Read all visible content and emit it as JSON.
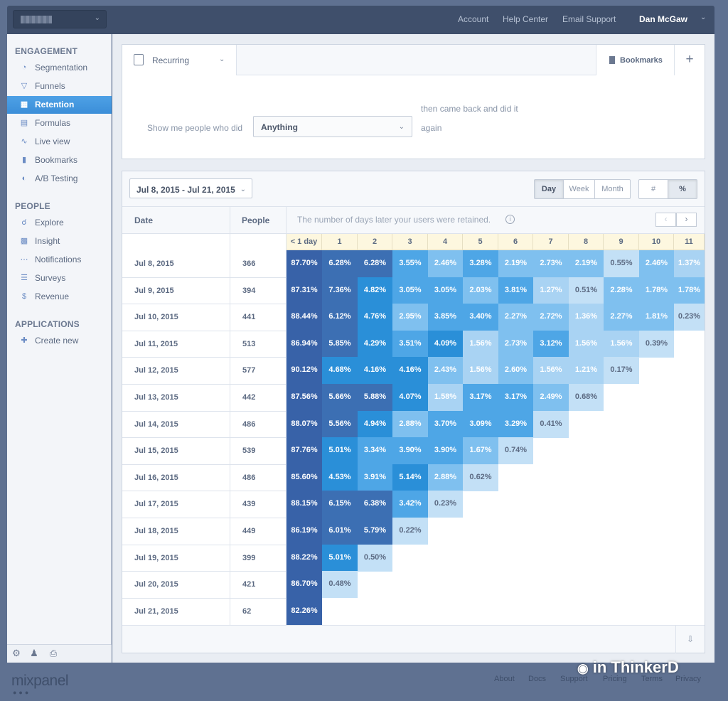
{
  "topbar": {
    "nav": [
      "Account",
      "Help Center",
      "Email Support"
    ],
    "user": "Dan McGaw"
  },
  "sidebar": {
    "sections": [
      {
        "heading": "ENGAGEMENT",
        "items": [
          {
            "label": "Segmentation",
            "icon": "pie-chart-icon"
          },
          {
            "label": "Funnels",
            "icon": "funnel-icon"
          },
          {
            "label": "Retention",
            "icon": "retention-grid-icon",
            "active": true
          },
          {
            "label": "Formulas",
            "icon": "calculator-icon"
          },
          {
            "label": "Live view",
            "icon": "live-view-icon"
          },
          {
            "label": "Bookmarks",
            "icon": "bookmark-icon"
          },
          {
            "label": "A/B Testing",
            "icon": "ab-testing-icon"
          }
        ]
      },
      {
        "heading": "PEOPLE",
        "items": [
          {
            "label": "Explore",
            "icon": "explore-icon"
          },
          {
            "label": "Insight",
            "icon": "insight-icon"
          },
          {
            "label": "Notifications",
            "icon": "notifications-icon"
          },
          {
            "label": "Surveys",
            "icon": "survey-icon"
          },
          {
            "label": "Revenue",
            "icon": "revenue-icon"
          }
        ]
      },
      {
        "heading": "APPLICATIONS",
        "items": [
          {
            "label": "Create new",
            "icon": "plus-icon"
          }
        ]
      }
    ]
  },
  "query": {
    "type_label": "Recurring",
    "bookmarks_label": "Bookmarks",
    "show_label": "Show me people who did",
    "event_value": "Anything",
    "then_label": "then came back and did it",
    "again_label": "again"
  },
  "report": {
    "date_range": "Jul 8, 2015 - Jul 21, 2015",
    "interval_options": [
      "Day",
      "Week",
      "Month"
    ],
    "interval_selected": "Day",
    "mode_options": [
      "#",
      "%"
    ],
    "mode_selected": "%",
    "col_date": "Date",
    "col_people": "People",
    "retained_note": "The number of days later your users were retained.",
    "day_headers": [
      "< 1 day",
      "1",
      "2",
      "3",
      "4",
      "5",
      "6",
      "7",
      "8",
      "9",
      "10",
      "11"
    ],
    "rows": [
      {
        "date": "Jul 8, 2015",
        "people": "366",
        "values": [
          "87.70%",
          "6.28%",
          "6.28%",
          "3.55%",
          "2.46%",
          "3.28%",
          "2.19%",
          "2.73%",
          "2.19%",
          "0.55%",
          "2.46%",
          "1.37%"
        ]
      },
      {
        "date": "Jul 9, 2015",
        "people": "394",
        "values": [
          "87.31%",
          "7.36%",
          "4.82%",
          "3.05%",
          "3.05%",
          "2.03%",
          "3.81%",
          "1.27%",
          "0.51%",
          "2.28%",
          "1.78%",
          "1.78%"
        ]
      },
      {
        "date": "Jul 10, 2015",
        "people": "441",
        "values": [
          "88.44%",
          "6.12%",
          "4.76%",
          "2.95%",
          "3.85%",
          "3.40%",
          "2.27%",
          "2.72%",
          "1.36%",
          "2.27%",
          "1.81%",
          "0.23%"
        ]
      },
      {
        "date": "Jul 11, 2015",
        "people": "513",
        "values": [
          "86.94%",
          "5.85%",
          "4.29%",
          "3.51%",
          "4.09%",
          "1.56%",
          "2.73%",
          "3.12%",
          "1.56%",
          "1.56%",
          "0.39%"
        ]
      },
      {
        "date": "Jul 12, 2015",
        "people": "577",
        "values": [
          "90.12%",
          "4.68%",
          "4.16%",
          "4.16%",
          "2.43%",
          "1.56%",
          "2.60%",
          "1.56%",
          "1.21%",
          "0.17%"
        ]
      },
      {
        "date": "Jul 13, 2015",
        "people": "442",
        "values": [
          "87.56%",
          "5.66%",
          "5.88%",
          "4.07%",
          "1.58%",
          "3.17%",
          "3.17%",
          "2.49%",
          "0.68%"
        ]
      },
      {
        "date": "Jul 14, 2015",
        "people": "486",
        "values": [
          "88.07%",
          "5.56%",
          "4.94%",
          "2.88%",
          "3.70%",
          "3.09%",
          "3.29%",
          "0.41%"
        ]
      },
      {
        "date": "Jul 15, 2015",
        "people": "539",
        "values": [
          "87.76%",
          "5.01%",
          "3.34%",
          "3.90%",
          "3.90%",
          "1.67%",
          "0.74%"
        ]
      },
      {
        "date": "Jul 16, 2015",
        "people": "486",
        "values": [
          "85.60%",
          "4.53%",
          "3.91%",
          "5.14%",
          "2.88%",
          "0.62%"
        ]
      },
      {
        "date": "Jul 17, 2015",
        "people": "439",
        "values": [
          "88.15%",
          "6.15%",
          "6.38%",
          "3.42%",
          "0.23%"
        ]
      },
      {
        "date": "Jul 18, 2015",
        "people": "449",
        "values": [
          "86.19%",
          "6.01%",
          "5.79%",
          "0.22%"
        ]
      },
      {
        "date": "Jul 19, 2015",
        "people": "399",
        "values": [
          "88.22%",
          "5.01%",
          "0.50%"
        ]
      },
      {
        "date": "Jul 20, 2015",
        "people": "421",
        "values": [
          "86.70%",
          "0.48%"
        ]
      },
      {
        "date": "Jul 21, 2015",
        "people": "62",
        "values": [
          "82.26%"
        ]
      }
    ],
    "colors": {
      "first_col": "#3862a8",
      "dark": "#3c6fb3",
      "strong": "#2a8fd8",
      "medium": "#4ea6e6",
      "light": "#7fc0ef",
      "pale": "#a9d3f3",
      "faint": "#c3e0f6"
    }
  },
  "footer": {
    "brand": "mixpanel",
    "links": [
      "About",
      "Docs",
      "Support",
      "Pricing",
      "Terms",
      "Privacy"
    ],
    "watermark": "in ThinkerD"
  }
}
